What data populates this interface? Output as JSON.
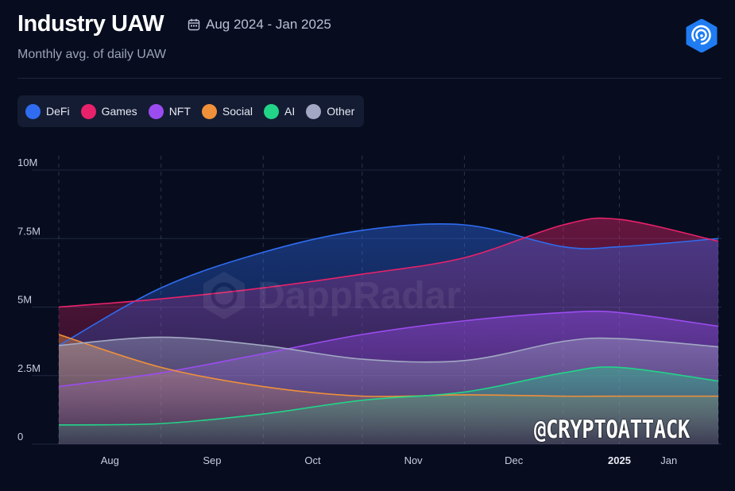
{
  "header": {
    "title": "Industry UAW",
    "date_range": "Aug 2024 - Jan 2025",
    "subtitle": "Monthly avg. of daily UAW",
    "calendar_icon": "calendar-icon",
    "logo_icon": "dappradar-logo-icon"
  },
  "watermark": {
    "text": "DappRadar"
  },
  "credit": {
    "text": "@CRYPTOATTACK"
  },
  "colors": {
    "background": "#070d1f",
    "DeFi": "#2f6cf0",
    "Games": "#e8226a",
    "NFT": "#9b4cf0",
    "Social": "#f0903a",
    "AI": "#22d488",
    "Other": "#a2a8c4"
  },
  "chart_data": {
    "type": "area",
    "title": "Industry UAW",
    "subtitle": "Monthly avg. of daily UAW",
    "x": [
      "2024-07-15",
      "2024-08-15",
      "2024-09-15",
      "2024-10-15",
      "2024-11-15",
      "2024-12-15",
      "2025-01-01",
      "2025-01-31"
    ],
    "x_tick_labels": [
      "Aug",
      "Sep",
      "Oct",
      "Nov",
      "Dec",
      "2025",
      "Jan"
    ],
    "y_tick_labels": [
      "0",
      "2.5M",
      "5M",
      "7.5M",
      "10M"
    ],
    "ylim": [
      0,
      10000000
    ],
    "grid": true,
    "legend_position": "top-left",
    "series": [
      {
        "name": "DeFi",
        "values": [
          3600000,
          5700000,
          7000000,
          7800000,
          8000000,
          7200000,
          7200000,
          7500000
        ]
      },
      {
        "name": "Games",
        "values": [
          5000000,
          5300000,
          5700000,
          6200000,
          6800000,
          8000000,
          8200000,
          7400000
        ]
      },
      {
        "name": "NFT",
        "values": [
          2100000,
          2600000,
          3300000,
          4000000,
          4500000,
          4800000,
          4800000,
          4300000
        ]
      },
      {
        "name": "Social",
        "values": [
          4000000,
          2800000,
          2100000,
          1750000,
          1800000,
          1750000,
          1750000,
          1750000
        ]
      },
      {
        "name": "AI",
        "values": [
          700000,
          750000,
          1100000,
          1600000,
          1900000,
          2600000,
          2800000,
          2300000
        ]
      },
      {
        "name": "Other",
        "values": [
          3600000,
          3900000,
          3600000,
          3100000,
          3050000,
          3750000,
          3850000,
          3550000
        ]
      }
    ]
  }
}
